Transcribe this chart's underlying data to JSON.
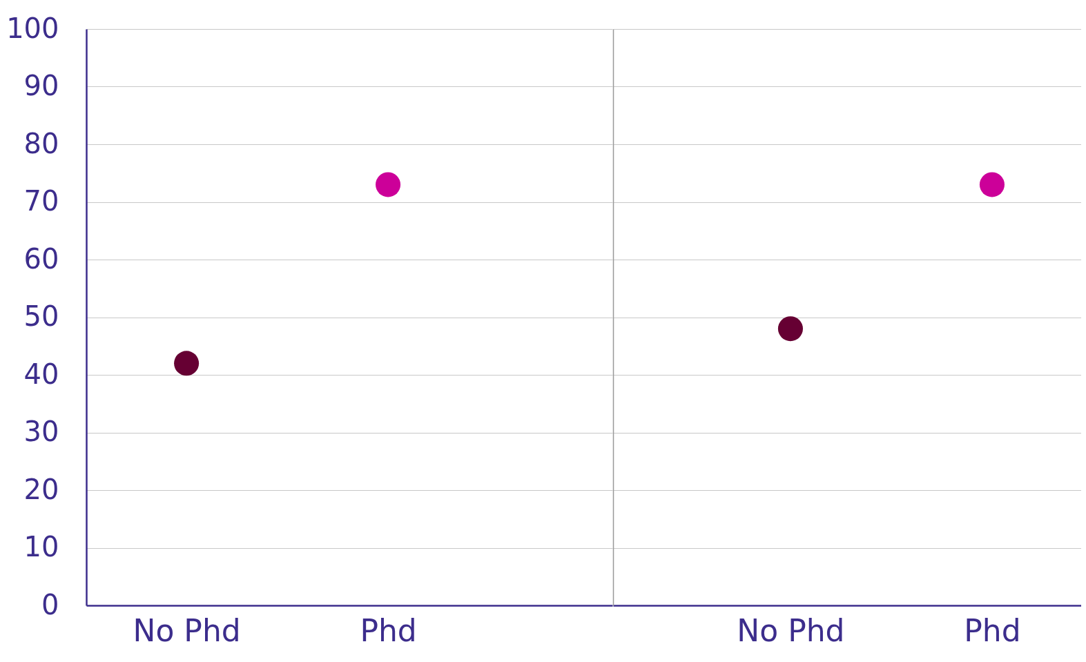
{
  "chart_data": [
    {
      "type": "scatter",
      "categories": [
        "No Phd",
        "Phd"
      ],
      "values": [
        42,
        73
      ],
      "colors": [
        "#660033",
        "#cc0099"
      ],
      "ylim": [
        0,
        100
      ],
      "yticks": [
        0,
        10,
        20,
        30,
        40,
        50,
        60,
        70,
        80,
        90,
        100
      ],
      "grid": "y",
      "marker": "circle"
    },
    {
      "type": "scatter",
      "categories": [
        "No Phd",
        "Phd"
      ],
      "values": [
        48,
        73
      ],
      "colors": [
        "#660033",
        "#cc0099"
      ],
      "ylim": [
        0,
        100
      ],
      "yticks": [
        0,
        10,
        20,
        30,
        40,
        50,
        60,
        70,
        80,
        90,
        100
      ],
      "grid": "y",
      "marker": "circle",
      "tick_labels": "x"
    }
  ]
}
